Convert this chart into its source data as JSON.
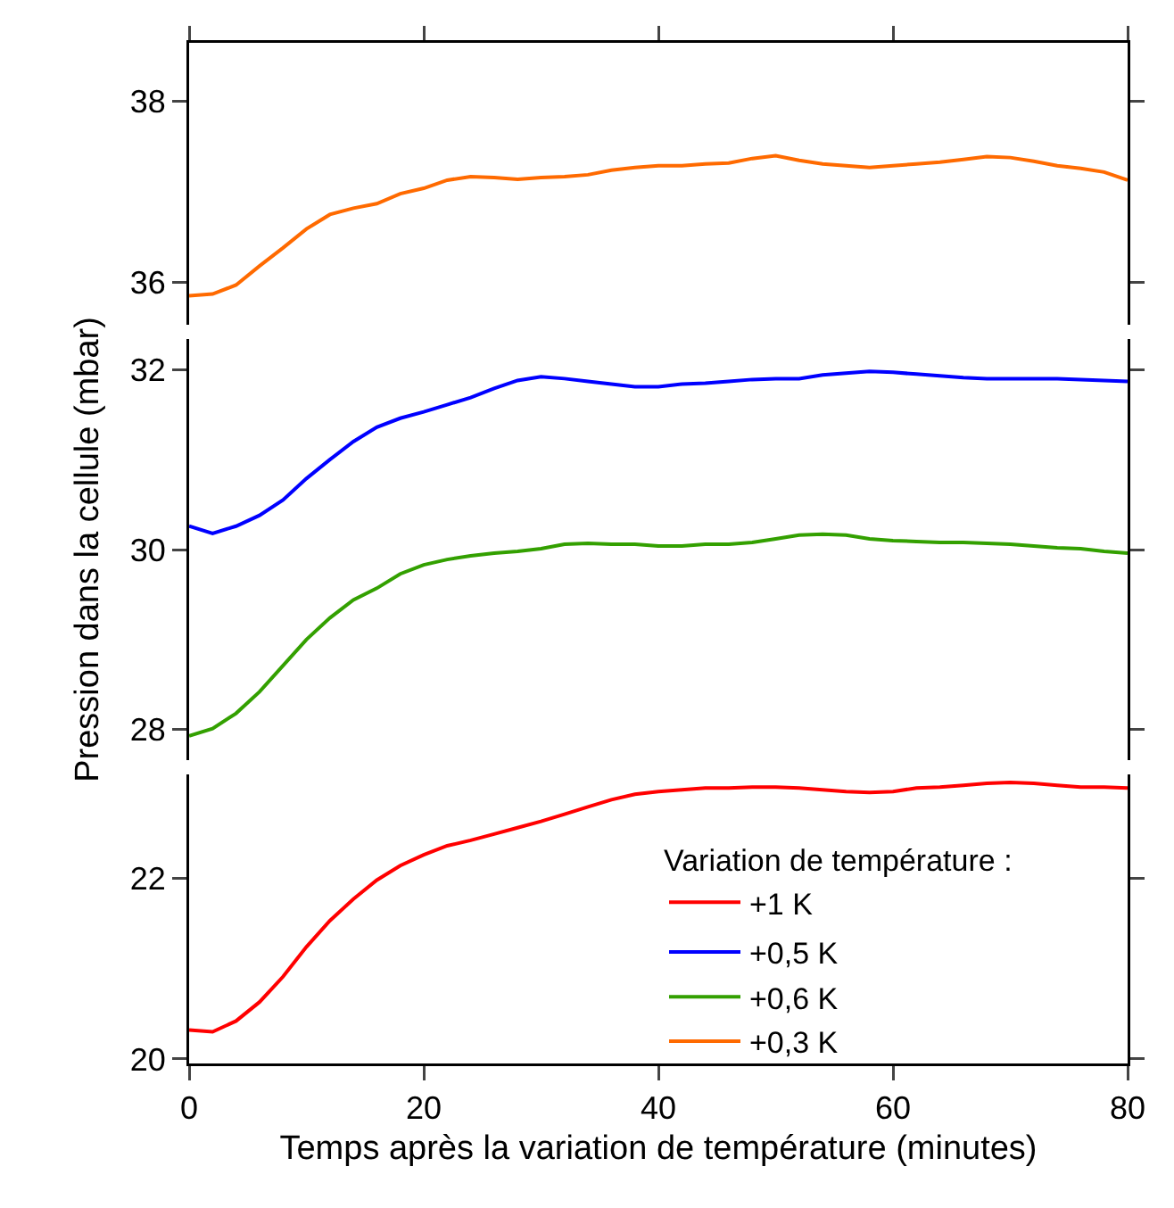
{
  "chart_data": [
    {
      "type": "line",
      "tick_labels": "y",
      "legend": "bottom right",
      "x": [
        0,
        2,
        4,
        6,
        8,
        10,
        12,
        14,
        16,
        18,
        20,
        22,
        24,
        26,
        28,
        30,
        32,
        34,
        36,
        38,
        40,
        42,
        44,
        46,
        48,
        50,
        52,
        54,
        56,
        58,
        60,
        62,
        64,
        66,
        68,
        70,
        72,
        74,
        76,
        78,
        80
      ],
      "series": [
        {
          "name": "+0,3 K",
          "color": "#ff6a00",
          "values": [
            35.85,
            35.87,
            35.97,
            36.18,
            36.38,
            36.59,
            36.75,
            36.82,
            36.87,
            36.98,
            37.04,
            37.13,
            37.17,
            37.16,
            37.14,
            37.16,
            37.17,
            37.19,
            37.24,
            37.27,
            37.29,
            37.29,
            37.31,
            37.32,
            37.37,
            37.4,
            37.35,
            37.31,
            37.29,
            37.27,
            37.29,
            37.31,
            37.33,
            37.36,
            37.39,
            37.38,
            37.34,
            37.29,
            37.26,
            37.22,
            37.13
          ]
        }
      ],
      "xlim": [
        0,
        80
      ],
      "xticks": [
        0,
        20,
        40,
        60,
        80
      ],
      "ylim": [
        35.53,
        38.65
      ],
      "yticks": [
        36,
        38
      ],
      "grid": false,
      "marker": "none",
      "line_style": "solid"
    },
    {
      "type": "line",
      "tick_labels": "y",
      "legend": "bottom right",
      "ylabel": "Pression dans la cellule (mbar)",
      "x": [
        0,
        2,
        4,
        6,
        8,
        10,
        12,
        14,
        16,
        18,
        20,
        22,
        24,
        26,
        28,
        30,
        32,
        34,
        36,
        38,
        40,
        42,
        44,
        46,
        48,
        50,
        52,
        54,
        56,
        58,
        60,
        62,
        64,
        66,
        68,
        70,
        72,
        74,
        76,
        78,
        80
      ],
      "series": [
        {
          "name": "+0,5 K",
          "color": "#0000ff",
          "values": [
            30.26,
            30.18,
            30.26,
            30.38,
            30.55,
            30.79,
            31.0,
            31.2,
            31.36,
            31.46,
            31.53,
            31.61,
            31.69,
            31.79,
            31.88,
            31.92,
            31.9,
            31.87,
            31.84,
            31.81,
            31.81,
            31.84,
            31.85,
            31.87,
            31.89,
            31.9,
            31.9,
            31.94,
            31.96,
            31.98,
            31.97,
            31.95,
            31.93,
            31.91,
            31.9,
            31.9,
            31.9,
            31.9,
            31.89,
            31.88,
            31.87
          ]
        },
        {
          "name": "+0,6 K",
          "color": "#33a000",
          "values": [
            27.93,
            28.01,
            28.18,
            28.42,
            28.71,
            29.0,
            29.24,
            29.44,
            29.57,
            29.73,
            29.83,
            29.89,
            29.93,
            29.96,
            29.98,
            30.01,
            30.06,
            30.07,
            30.06,
            30.06,
            30.04,
            30.04,
            30.06,
            30.06,
            30.08,
            30.12,
            30.16,
            30.17,
            30.16,
            30.12,
            30.1,
            30.09,
            30.08,
            30.08,
            30.07,
            30.06,
            30.04,
            30.02,
            30.01,
            29.98,
            29.96
          ]
        }
      ],
      "xlim": [
        0,
        80
      ],
      "xticks": [
        0,
        20,
        40,
        60,
        80
      ],
      "ylim": [
        27.66,
        32.34
      ],
      "yticks": [
        28,
        30,
        32
      ],
      "grid": false,
      "marker": "none",
      "line_style": "solid"
    },
    {
      "type": "line",
      "legend": "right",
      "legend_title": "Variation de température :",
      "xlabel": "Temps après la variation de température (minutes)",
      "x": [
        0,
        2,
        4,
        6,
        8,
        10,
        12,
        14,
        16,
        18,
        20,
        22,
        24,
        26,
        28,
        30,
        32,
        34,
        36,
        38,
        40,
        42,
        44,
        46,
        48,
        50,
        52,
        54,
        56,
        58,
        60,
        62,
        64,
        66,
        68,
        70,
        72,
        74,
        76,
        78,
        80
      ],
      "series": [
        {
          "name": "+1 K",
          "color": "#ff0000",
          "values": [
            20.32,
            20.3,
            20.42,
            20.63,
            20.91,
            21.24,
            21.53,
            21.77,
            21.98,
            22.14,
            22.26,
            22.36,
            22.42,
            22.49,
            22.56,
            22.63,
            22.71,
            22.79,
            22.87,
            22.93,
            22.96,
            22.98,
            23.0,
            23.0,
            23.01,
            23.01,
            23.0,
            22.98,
            22.96,
            22.95,
            22.96,
            23.0,
            23.01,
            23.03,
            23.05,
            23.06,
            23.05,
            23.03,
            23.01,
            23.01,
            23.0
          ]
        }
      ],
      "xlim": [
        0,
        80
      ],
      "xticks": [
        0,
        20,
        40,
        60,
        80
      ],
      "ylim": [
        19.95,
        23.15
      ],
      "yticks": [
        20,
        22
      ],
      "grid": false,
      "marker": "none",
      "line_style": "solid"
    }
  ]
}
